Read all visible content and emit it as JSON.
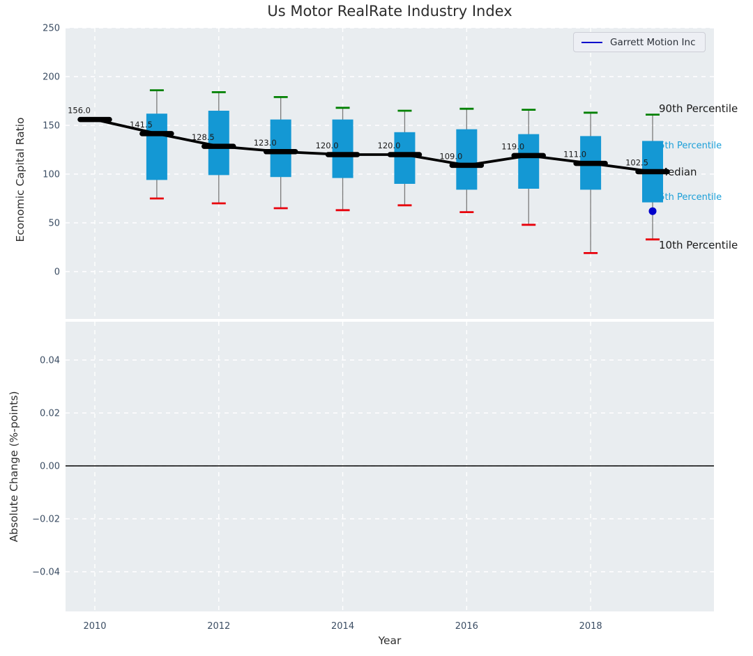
{
  "title": "Us Motor RealRate Industry Index",
  "legend": {
    "label": "Garrett Motion Inc",
    "line_color": "#0000cc"
  },
  "colors": {
    "plot_background": "#e9edf0",
    "grid": "#ffffff",
    "box_fill": "#1498d4",
    "whisker": "#7a7a7a",
    "cap_high": "#008000",
    "cap_low": "#e8000b",
    "median": "#000000",
    "company_marker": "#0000cc",
    "tick_label": "#3b4d63",
    "axis_label": "#2e2e2e",
    "annotation_accent": "#1b9fd8",
    "annotation_dark": "#1a1a1a"
  },
  "chart_data": [
    {
      "type": "boxplot",
      "title": "Us Motor RealRate Industry Index",
      "ylabel": "Economic Capital Ratio",
      "xlabel": "",
      "x": [
        2010,
        2011,
        2012,
        2013,
        2014,
        2015,
        2016,
        2017,
        2018,
        2019
      ],
      "series": [
        {
          "name": "90th Percentile",
          "values": [
            156,
            186,
            184,
            179,
            168,
            165,
            167,
            166,
            163,
            161
          ]
        },
        {
          "name": "75th Percentile",
          "values": [
            156,
            162,
            165,
            156,
            156,
            143,
            146,
            141,
            139,
            134
          ]
        },
        {
          "name": "Median",
          "values": [
            156,
            141.5,
            128.5,
            123,
            120,
            120,
            109,
            119,
            111,
            102.5
          ]
        },
        {
          "name": "25th Percentile",
          "values": [
            156,
            94,
            99,
            97,
            96,
            90,
            84,
            85,
            84,
            71
          ]
        },
        {
          "name": "10th Percentile",
          "values": [
            156,
            75,
            70,
            65,
            63,
            68,
            61,
            48,
            19,
            33
          ]
        },
        {
          "name": "Garrett Motion Inc",
          "values": [
            null,
            null,
            null,
            null,
            null,
            null,
            null,
            null,
            null,
            62
          ]
        }
      ],
      "median_labels": [
        "156.0",
        "141.5",
        "128.5",
        "123.0",
        "120.0",
        "120.0",
        "109.0",
        "119.0",
        "111.0",
        "102.5"
      ],
      "annotations": [
        {
          "label": "90th Percentile",
          "style": "dark"
        },
        {
          "label": "75th Percentile",
          "style": "accent"
        },
        {
          "label": "Median",
          "style": "dark"
        },
        {
          "label": "25th Percentile",
          "style": "accent"
        },
        {
          "label": "10th Percentile",
          "style": "dark"
        }
      ],
      "ylim": [
        -48.5,
        250
      ],
      "ytick_values": [
        250,
        200,
        150,
        100,
        50,
        0
      ],
      "ytick_labels": [
        "250",
        "200",
        "150",
        "100",
        "50",
        "0"
      ],
      "grid": true,
      "legend_position": "upper right"
    },
    {
      "type": "line",
      "ylabel": "Absolute Change (%-points)",
      "xlabel": "Year",
      "x": [],
      "series": [],
      "zero_line": 0.0,
      "ylim": [
        -0.055,
        0.0545
      ],
      "ytick_values": [
        0.04,
        0.02,
        0,
        -0.02,
        -0.04
      ],
      "ytick_labels": [
        "0.04",
        "0.02",
        "0.00",
        "−0.02",
        "−0.04"
      ],
      "xtick_values": [
        2010,
        2012,
        2014,
        2016,
        2018
      ],
      "xtick_labels": [
        "2010",
        "2012",
        "2014",
        "2016",
        "2018"
      ],
      "grid": true
    }
  ]
}
